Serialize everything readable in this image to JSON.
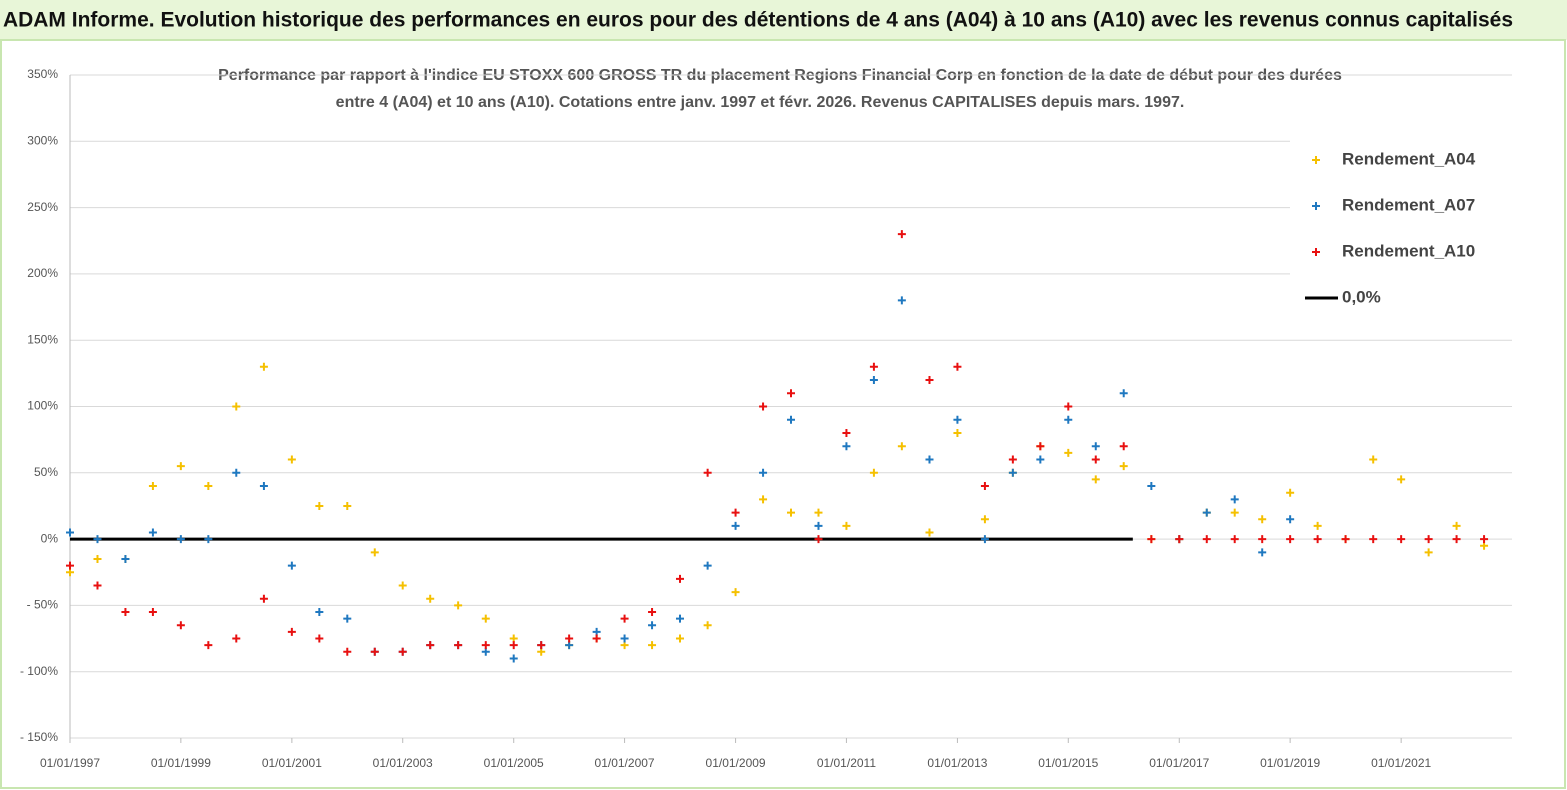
{
  "header": {
    "title": "ADAM Informe. Evolution historique des performances en euros pour des détentions de 4 ans (A04) à 10 ans (A10) avec les revenus connus capitalisés"
  },
  "chart_data": {
    "type": "scatter",
    "title": "Performance par rapport à l'indice EU STOXX 600 GROSS TR  du placement Regions Financial Corp en fonction de la date de début pour des durées",
    "subtitle": "entre 4 (A04) et 10 ans (A10). Cotations entre janv. 1997 et févr. 2026. Revenus CAPITALISES depuis mars. 1997.",
    "x": [
      "1997-01-01",
      "1997-07-01",
      "1998-01-01",
      "1998-07-01",
      "1999-01-01",
      "1999-07-01",
      "2000-01-01",
      "2000-07-01",
      "2001-01-01",
      "2001-07-01",
      "2002-01-01",
      "2002-07-01",
      "2003-01-01",
      "2003-07-01",
      "2004-01-01",
      "2004-07-01",
      "2005-01-01",
      "2005-07-01",
      "2006-01-01",
      "2006-07-01",
      "2007-01-01",
      "2007-07-01",
      "2008-01-01",
      "2008-07-01",
      "2009-01-01",
      "2009-07-01",
      "2010-01-01",
      "2010-07-01",
      "2011-01-01",
      "2011-07-01",
      "2012-01-01",
      "2012-07-01",
      "2013-01-01",
      "2013-07-01",
      "2014-01-01",
      "2014-07-01",
      "2015-01-01",
      "2015-07-01",
      "2016-01-01",
      "2016-07-01",
      "2017-01-01",
      "2017-07-01",
      "2018-01-01",
      "2018-07-01",
      "2019-01-01",
      "2019-07-01",
      "2020-01-01",
      "2020-07-01",
      "2021-01-01",
      "2021-07-01",
      "2022-01-01",
      "2022-07-01"
    ],
    "series": [
      {
        "name": "Rendement_A04",
        "color": "#f5c000",
        "values": [
          -25,
          -15,
          -15,
          40,
          55,
          40,
          100,
          130,
          60,
          25,
          25,
          -10,
          -35,
          -45,
          -50,
          -60,
          -75,
          -85,
          -80,
          -75,
          -80,
          -80,
          -75,
          -65,
          -40,
          30,
          20,
          20,
          10,
          50,
          70,
          5,
          80,
          15,
          50,
          70,
          65,
          45,
          55,
          0,
          0,
          20,
          20,
          15,
          35,
          10,
          0,
          60,
          45,
          -10,
          10,
          -5
        ]
      },
      {
        "name": "Rendement_A07",
        "color": "#1f78c0",
        "values": [
          5,
          0,
          -15,
          5,
          0,
          0,
          50,
          40,
          -20,
          -55,
          -60,
          -85,
          -85,
          -80,
          -80,
          -85,
          -90,
          -80,
          -80,
          -70,
          -75,
          -65,
          -60,
          -20,
          10,
          50,
          90,
          10,
          70,
          120,
          180,
          60,
          90,
          0,
          50,
          60,
          90,
          70,
          110,
          40,
          0,
          20,
          30,
          -10,
          15,
          null,
          null,
          null,
          null,
          null,
          null,
          null
        ]
      },
      {
        "name": "Rendement_A10",
        "color": "#e81010",
        "values": [
          -20,
          -35,
          -55,
          -55,
          -65,
          -80,
          -75,
          -45,
          -70,
          -75,
          -85,
          -85,
          -85,
          -80,
          -80,
          -80,
          -80,
          -80,
          -75,
          -75,
          -60,
          -55,
          -30,
          50,
          20,
          100,
          110,
          0,
          80,
          130,
          230,
          120,
          130,
          40,
          60,
          70,
          100,
          60,
          70,
          0,
          0,
          0,
          0,
          0,
          0,
          0,
          0,
          0,
          0,
          0,
          0,
          0
        ]
      }
    ],
    "reference_line": {
      "name": "0,0%",
      "color": "#000000",
      "value": 0,
      "x": [
        "1997-01-01",
        "2016-03-01"
      ]
    },
    "xlim": [
      "1997-01-01",
      "2023-01-01"
    ],
    "xticks": [
      {
        "value": "1997-01-01",
        "label": "01/01/1997"
      },
      {
        "value": "1999-01-01",
        "label": "01/01/1999"
      },
      {
        "value": "2001-01-01",
        "label": "01/01/2001"
      },
      {
        "value": "2003-01-01",
        "label": "01/01/2003"
      },
      {
        "value": "2005-01-01",
        "label": "01/01/2005"
      },
      {
        "value": "2007-01-01",
        "label": "01/01/2007"
      },
      {
        "value": "2009-01-01",
        "label": "01/01/2009"
      },
      {
        "value": "2011-01-01",
        "label": "01/01/2011"
      },
      {
        "value": "2013-01-01",
        "label": "01/01/2013"
      },
      {
        "value": "2015-01-01",
        "label": "01/01/2015"
      },
      {
        "value": "2017-01-01",
        "label": "01/01/2017"
      },
      {
        "value": "2019-01-01",
        "label": "01/01/2019"
      },
      {
        "value": "2021-01-01",
        "label": "01/01/2021"
      }
    ],
    "ylim": [
      -150,
      350
    ],
    "yticks": [
      {
        "value": -150,
        "label": "- 150%"
      },
      {
        "value": -100,
        "label": "- 100%"
      },
      {
        "value": -50,
        "label": "- 50%"
      },
      {
        "value": 0,
        "label": "0%"
      },
      {
        "value": 50,
        "label": "50%"
      },
      {
        "value": 100,
        "label": "100%"
      },
      {
        "value": 150,
        "label": "150%"
      },
      {
        "value": 200,
        "label": "200%"
      },
      {
        "value": 250,
        "label": "250%"
      },
      {
        "value": 300,
        "label": "300%"
      },
      {
        "value": 350,
        "label": "350%"
      }
    ],
    "grid": true,
    "legend": "upper right"
  }
}
